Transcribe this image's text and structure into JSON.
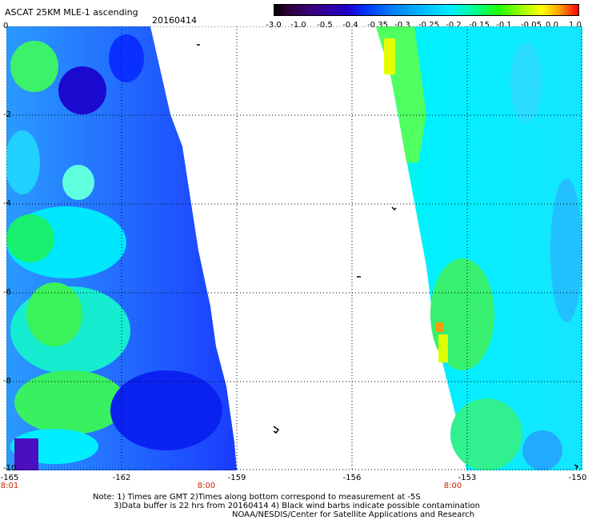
{
  "header": {
    "title": "ASCAT 25KM MLE-1 ascending",
    "date": "20160414"
  },
  "colorbar": {
    "ticks": [
      "-3.0",
      "-1.0",
      "-0.5",
      "-0.4",
      "-0.35",
      "-0.3",
      "-0.25",
      "-0.2",
      "-0.15",
      "-0.1",
      "-0.05",
      "0.0",
      "1.0"
    ],
    "colors": [
      "#000000",
      "#3a007a",
      "#1f00c8",
      "#0033ff",
      "#0077ff",
      "#00b4ff",
      "#00eeff",
      "#00ff90",
      "#22ff00",
      "#a8ff00",
      "#ffff00",
      "#ff9900",
      "#ff0000"
    ]
  },
  "axes": {
    "y_labels": [
      "0",
      "-2",
      "-4",
      "-6",
      "-8",
      "-10"
    ],
    "x_labels": [
      "-165",
      "-162",
      "-159",
      "-156",
      "-153",
      "-150"
    ],
    "time_labels": [
      "8:01",
      "8:00",
      "8:00"
    ],
    "lat_range": [
      -10,
      0
    ],
    "lon_range": [
      -165,
      -150
    ],
    "grid": "dotted"
  },
  "footer": {
    "line1": "Note: 1) Times are GMT 2)Times along bottom correspond to measurement at -5S",
    "line2": "3)Data buffer is 22 hrs from 20160414 4) Black wind barbs indicate possible contamination",
    "line3": "NOAA/NESDIS/Center for Satellite Applications and Research"
  }
}
